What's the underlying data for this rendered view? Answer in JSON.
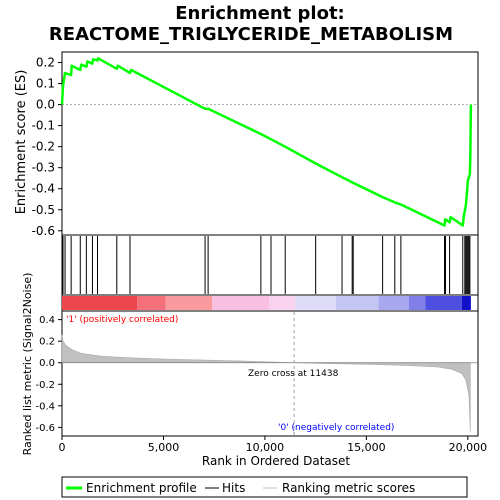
{
  "chart_data": {
    "type": "line",
    "title_line1": "Enrichment plot:",
    "title_line2": "REACTOME_TRIGLYCERIDE_METABOLISM",
    "es_panel": {
      "ylabel": "Enrichment score (ES)",
      "ylim": [
        -0.62,
        0.25
      ],
      "yticks": [
        0.2,
        0.1,
        0.0,
        -0.1,
        -0.2,
        -0.3,
        -0.4,
        -0.5,
        -0.6
      ],
      "ytick_labels": [
        "0.2",
        "0.1",
        "0.0",
        "-0.1",
        "-0.2",
        "-0.3",
        "-0.4",
        "-0.5",
        "-0.6"
      ],
      "line_color": "#00ff00",
      "points": [
        [
          0,
          0.0
        ],
        [
          50,
          0.09
        ],
        [
          150,
          0.15
        ],
        [
          450,
          0.14
        ],
        [
          480,
          0.185
        ],
        [
          900,
          0.165
        ],
        [
          950,
          0.19
        ],
        [
          1200,
          0.18
        ],
        [
          1250,
          0.205
        ],
        [
          1500,
          0.195
        ],
        [
          1530,
          0.215
        ],
        [
          1750,
          0.21
        ],
        [
          1780,
          0.22
        ],
        [
          2700,
          0.17
        ],
        [
          2750,
          0.185
        ],
        [
          3350,
          0.15
        ],
        [
          3400,
          0.165
        ],
        [
          7050,
          -0.02
        ],
        [
          7200,
          -0.02
        ],
        [
          9800,
          -0.14
        ],
        [
          10300,
          -0.165
        ],
        [
          11000,
          -0.2
        ],
        [
          12500,
          -0.28
        ],
        [
          13800,
          -0.345
        ],
        [
          14300,
          -0.37
        ],
        [
          15800,
          -0.44
        ],
        [
          16400,
          -0.465
        ],
        [
          16700,
          -0.475
        ],
        [
          18850,
          -0.575
        ],
        [
          18880,
          -0.545
        ],
        [
          19100,
          -0.56
        ],
        [
          19150,
          -0.535
        ],
        [
          19750,
          -0.575
        ],
        [
          19800,
          -0.53
        ],
        [
          19900,
          -0.48
        ],
        [
          19950,
          -0.43
        ],
        [
          20000,
          -0.36
        ],
        [
          20100,
          -0.33
        ],
        [
          20120,
          -0.25
        ],
        [
          20150,
          0.0
        ]
      ]
    },
    "hits_positions": [
      50,
      150,
      450,
      900,
      1200,
      1500,
      1750,
      2700,
      3350,
      7050,
      7200,
      9800,
      10300,
      11000,
      12500,
      13800,
      14300,
      14350,
      15800,
      16400,
      16700,
      18850,
      18900,
      19100,
      19750,
      19850,
      19900,
      19950,
      20000,
      20050,
      20100
    ],
    "rank_panel": {
      "ylabel": "Ranked list metric (Signal2Noise)",
      "ylim": [
        -0.68,
        0.48
      ],
      "yticks": [
        0.4,
        0.2,
        0.0,
        -0.2,
        -0.4,
        -0.6
      ],
      "ytick_labels": [
        "0.4",
        "0.2",
        "0.0",
        "-0.2",
        "-0.4",
        "-0.6"
      ],
      "zero_cross_label": "Zero cross at 11438",
      "zero_cross_x": 11438,
      "pos_label": "'1' (positively correlated)",
      "neg_label": "'0' (negatively correlated)",
      "pos_color": "#ff0000",
      "neg_color": "#0000ff",
      "fill_color": "#c0c0c0",
      "profile": [
        [
          0,
          0.26
        ],
        [
          50,
          0.2
        ],
        [
          200,
          0.16
        ],
        [
          500,
          0.12
        ],
        [
          1000,
          0.085
        ],
        [
          2000,
          0.06
        ],
        [
          3500,
          0.045
        ],
        [
          5000,
          0.035
        ],
        [
          7000,
          0.025
        ],
        [
          9000,
          0.015
        ],
        [
          11438,
          0.0
        ],
        [
          13000,
          -0.008
        ],
        [
          15000,
          -0.015
        ],
        [
          17000,
          -0.025
        ],
        [
          18500,
          -0.04
        ],
        [
          19200,
          -0.06
        ],
        [
          19700,
          -0.1
        ],
        [
          19900,
          -0.16
        ],
        [
          20050,
          -0.3
        ],
        [
          20120,
          -0.64
        ]
      ]
    },
    "xaxis": {
      "xlabel": "Rank in Ordered Dataset",
      "xlim": [
        0,
        20500
      ],
      "xticks": [
        0,
        5000,
        10000,
        15000,
        20000
      ],
      "xtick_labels": [
        "0",
        "5,000",
        "10,000",
        "15,000",
        "20,000"
      ]
    },
    "heatbar": [
      {
        "from": 0,
        "to": 3700,
        "color": "#ec474c"
      },
      {
        "from": 3700,
        "to": 5100,
        "color": "#f4707a"
      },
      {
        "from": 5100,
        "to": 7400,
        "color": "#f89a9e"
      },
      {
        "from": 7400,
        "to": 10200,
        "color": "#f9bfe0"
      },
      {
        "from": 10200,
        "to": 11500,
        "color": "#f8d2ee"
      },
      {
        "from": 11500,
        "to": 13500,
        "color": "#dedcf8"
      },
      {
        "from": 13500,
        "to": 15600,
        "color": "#c6c6f4"
      },
      {
        "from": 15600,
        "to": 17100,
        "color": "#a8a8ee"
      },
      {
        "from": 17100,
        "to": 17900,
        "color": "#8080e8"
      },
      {
        "from": 17900,
        "to": 19700,
        "color": "#4e4ee0"
      },
      {
        "from": 19700,
        "to": 20150,
        "color": "#1010c8"
      }
    ],
    "legend": {
      "items": [
        {
          "label": "Enrichment profile",
          "color": "#00ff00"
        },
        {
          "label": "Hits",
          "color": "#000000"
        },
        {
          "label": "Ranking metric scores",
          "color": "#c0c0c0"
        }
      ]
    }
  }
}
